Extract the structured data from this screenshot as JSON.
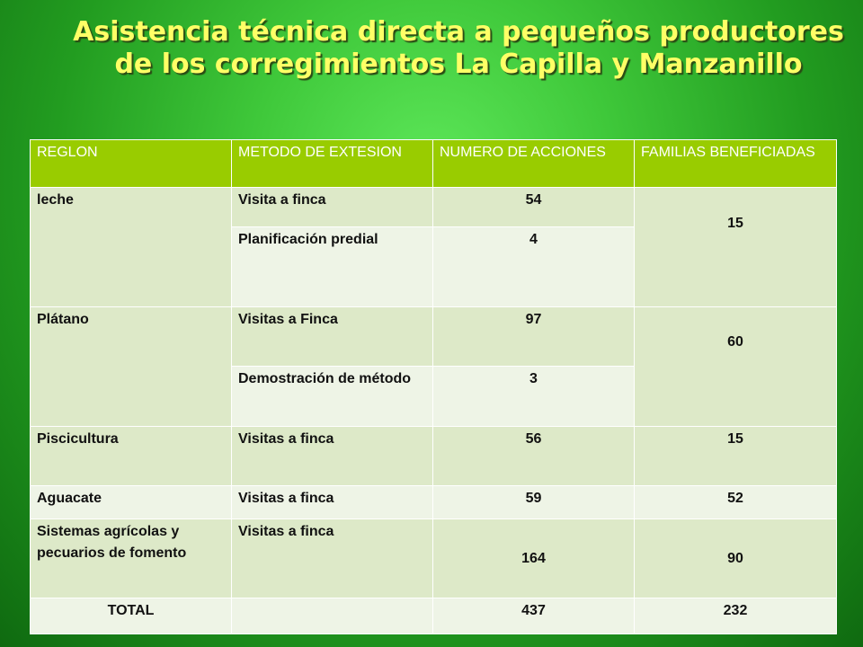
{
  "title": "Asistencia técnica directa a pequeños productores de los corregimientos La Capilla y Manzanillo",
  "table": {
    "headers": [
      "REGLON",
      "METODO DE EXTESION",
      "NUMERO DE ACCIONES",
      "FAMILIAS BENEFICIADAS"
    ],
    "rows": [
      {
        "reglon": "leche",
        "metodo": "Visita a finca",
        "acciones": "54",
        "familias": "15"
      },
      {
        "metodo": "Planificación predial",
        "acciones": "4"
      },
      {
        "reglon": "Plátano",
        "metodo": "Visitas a Finca",
        "acciones": "97",
        "familias": "60"
      },
      {
        "metodo": "Demostración de método",
        "acciones": "3"
      },
      {
        "reglon": "Piscicultura",
        "metodo": "Visitas a finca",
        "acciones": "56",
        "familias": "15"
      },
      {
        "reglon": "Aguacate",
        "metodo": "Visitas a finca",
        "acciones": "59",
        "familias": "52"
      },
      {
        "reglon": "Sistemas agrícolas y pecuarios de fomento",
        "metodo": "Visitas a finca",
        "acciones": "164",
        "familias": "90"
      }
    ],
    "total": {
      "label": "TOTAL",
      "acciones": "437",
      "familias": "232"
    }
  }
}
